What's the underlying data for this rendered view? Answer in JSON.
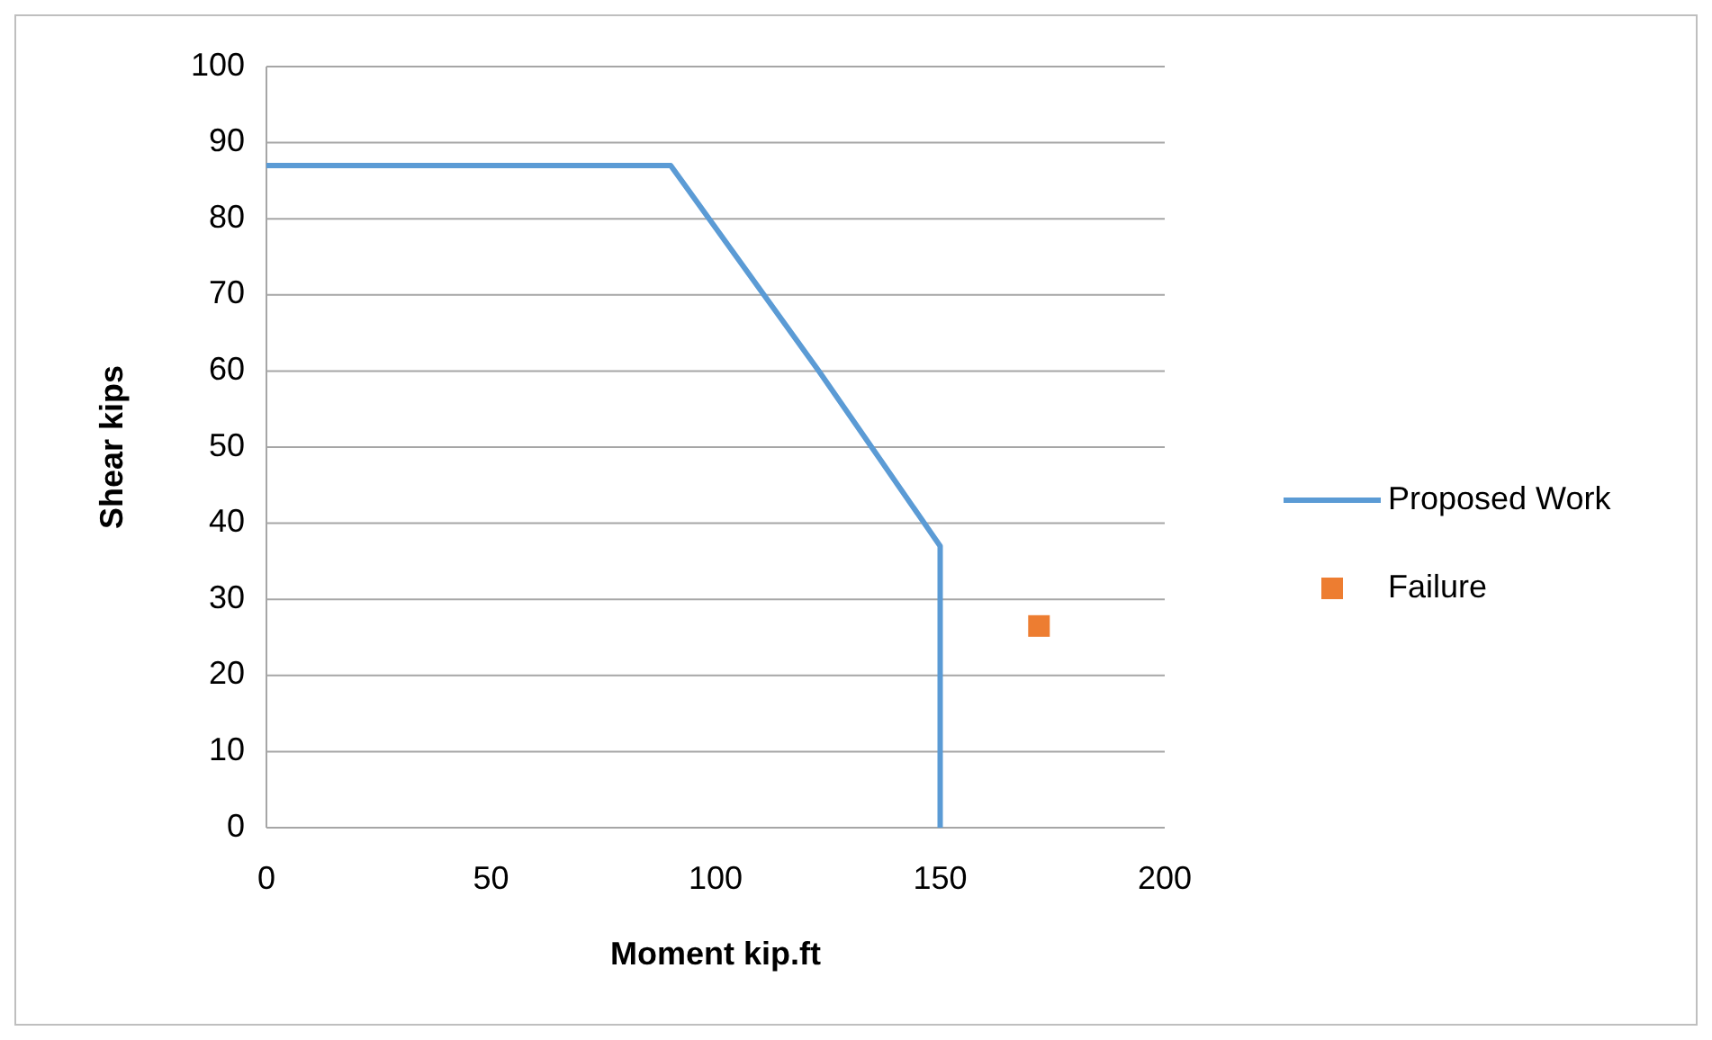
{
  "chart_data": {
    "type": "line",
    "xlabel": "Moment kip.ft",
    "ylabel": "Shear kips",
    "xlim": [
      0,
      200
    ],
    "xticks": [
      0,
      50,
      100,
      150,
      200
    ],
    "ylim": [
      0,
      100
    ],
    "yticks": [
      0,
      10,
      20,
      30,
      40,
      50,
      60,
      70,
      80,
      90,
      100
    ],
    "grid": "y",
    "legend": "right",
    "marker": "none",
    "series": [
      {
        "name": "Proposed Work",
        "type": "line",
        "color": "#5b9bd5",
        "x": [
          0,
          90,
          123,
          150,
          150
        ],
        "values": [
          87,
          87,
          60,
          37,
          0
        ]
      },
      {
        "name": "Failure",
        "type": "scatter",
        "marker": "square",
        "color": "#ed7d31",
        "x": [
          172
        ],
        "values": [
          26.5
        ]
      }
    ]
  }
}
